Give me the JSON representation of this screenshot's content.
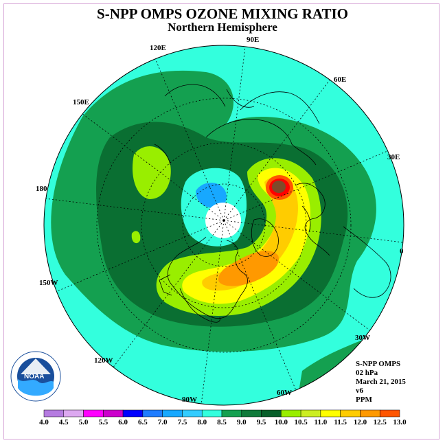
{
  "title": "S-NPP OMPS OZONE MIXING RATIO",
  "subtitle": "Northern Hemisphere",
  "longitude_labels": [
    {
      "id": "lon-90e",
      "text": "90E"
    },
    {
      "id": "lon-60e",
      "text": "60E"
    },
    {
      "id": "lon-30e",
      "text": "30E"
    },
    {
      "id": "lon-0",
      "text": "0"
    },
    {
      "id": "lon-30w",
      "text": "30W"
    },
    {
      "id": "lon-60w",
      "text": "60W"
    },
    {
      "id": "lon-90w",
      "text": "90W"
    },
    {
      "id": "lon-120w",
      "text": "120W"
    },
    {
      "id": "lon-150w",
      "text": "150W"
    },
    {
      "id": "lon-180",
      "text": "180"
    },
    {
      "id": "lon-150e",
      "text": "150E"
    },
    {
      "id": "lon-120e",
      "text": "120E"
    }
  ],
  "info": {
    "instrument": "S-NPP OMPS",
    "level": "02 hPa",
    "date": "March 21, 2015",
    "version": "v6",
    "units": "PPM"
  },
  "logo": {
    "name": "noaa-logo",
    "text": "NOAA"
  },
  "colorbar": {
    "ticks": [
      "4.0",
      "4.5",
      "5.0",
      "5.5",
      "6.0",
      "6.5",
      "7.0",
      "7.5",
      "8.0",
      "8.5",
      "9.0",
      "9.5",
      "10.0",
      "10.5",
      "11.0",
      "11.5",
      "12.0",
      "12.5",
      "13.0"
    ],
    "colors": [
      "#b57be0",
      "#dca8f0",
      "#ff00ff",
      "#cc00cc",
      "#0000ff",
      "#1e7cff",
      "#17a8ff",
      "#33ccff",
      "#33ffdd",
      "#14a050",
      "#0f7a3a",
      "#075f2a",
      "#99ee00",
      "#ccee22",
      "#ffff00",
      "#ffcc00",
      "#ff9900",
      "#ff5500",
      "#ff0000",
      "#7f4a2a"
    ]
  },
  "colors": {
    "ocean_cyan": "#33ffdd",
    "green_mid": "#14a050",
    "green_dark": "#0a6f32",
    "lime": "#99ee00",
    "yellow": "#ffff00",
    "orange": "#ff9900",
    "red": "#ff0000",
    "brown": "#7f4a2a",
    "blue_low": "#17a8ff"
  }
}
